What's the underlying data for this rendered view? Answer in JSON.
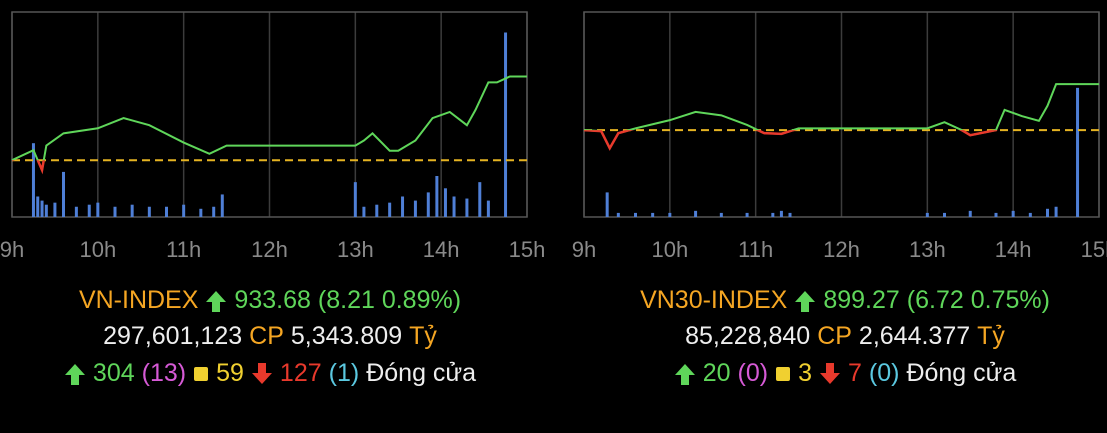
{
  "chart_data": [
    {
      "type": "line",
      "xlim": [
        9,
        15
      ],
      "ylim": [
        919.9,
        940
      ],
      "y2lim": [
        0,
        100
      ],
      "xticks": [
        {
          "value": 9,
          "label": "9h"
        },
        {
          "value": 10,
          "label": "10h"
        },
        {
          "value": 11,
          "label": "11h"
        },
        {
          "value": 12,
          "label": "12h"
        },
        {
          "value": 13,
          "label": "13h"
        },
        {
          "value": 14,
          "label": "14h"
        },
        {
          "value": 15,
          "label": "15h"
        }
      ],
      "x": [
        9.0,
        9.25,
        9.35,
        9.4,
        9.6,
        10.0,
        10.3,
        10.6,
        11.0,
        11.3,
        11.5,
        12.0,
        13.0,
        13.1,
        13.2,
        13.4,
        13.5,
        13.7,
        13.9,
        14.1,
        14.3,
        14.4,
        14.55,
        14.65,
        14.8,
        15.0
      ],
      "values": [
        925.47,
        926.45,
        924.5,
        926.9,
        928.1,
        928.6,
        929.6,
        928.9,
        927.2,
        926.1,
        926.9,
        926.9,
        926.9,
        927.4,
        928.1,
        926.4,
        926.4,
        927.4,
        929.6,
        930.2,
        928.9,
        930.4,
        933.1,
        933.1,
        933.68,
        933.68
      ],
      "color": "#5fd65a",
      "below_color": "#e8392c",
      "reference": 925.47,
      "reference_color": "#e6b422",
      "bar_x": [
        9.25,
        9.3,
        9.35,
        9.4,
        9.5,
        9.6,
        9.75,
        9.9,
        10.0,
        10.2,
        10.4,
        10.6,
        10.8,
        11.0,
        11.2,
        11.35,
        11.45,
        13.0,
        13.1,
        13.25,
        13.4,
        13.55,
        13.7,
        13.85,
        13.95,
        14.05,
        14.15,
        14.3,
        14.45,
        14.55,
        14.75
      ],
      "bar_values": [
        36,
        10,
        8,
        6,
        7,
        22,
        5,
        6,
        7,
        5,
        6,
        5,
        5,
        6,
        4,
        5,
        11,
        17,
        5,
        6,
        7,
        10,
        8,
        12,
        20,
        14,
        10,
        9,
        17,
        8,
        90
      ],
      "bar_color": "#4f7fd6",
      "summary": {
        "index_name": "VN-INDEX",
        "index_value": "933.68",
        "change_text": "(8.21 0.89%)",
        "volume": "297,601,123",
        "volume_unit": "CP",
        "turnover": "5,343.809",
        "turnover_unit": "Tỷ",
        "advances": 304,
        "ceiling": "(13)",
        "unchanged": 59,
        "declines": 127,
        "floor": "(1)",
        "status": "Đóng cửa"
      }
    },
    {
      "type": "line",
      "xlim": [
        9,
        15
      ],
      "ylim": [
        879.85,
        909.8
      ],
      "y2lim": [
        0,
        100
      ],
      "xticks": [
        {
          "value": 9,
          "label": "9h"
        },
        {
          "value": 10,
          "label": "10h"
        },
        {
          "value": 11,
          "label": "11h"
        },
        {
          "value": 12,
          "label": "12h"
        },
        {
          "value": 13,
          "label": "13h"
        },
        {
          "value": 14,
          "label": "14h"
        },
        {
          "value": 15,
          "label": "15h"
        }
      ],
      "x": [
        9.0,
        9.2,
        9.3,
        9.4,
        9.6,
        10.0,
        10.3,
        10.6,
        10.9,
        11.1,
        11.3,
        11.5,
        12.0,
        13.0,
        13.2,
        13.4,
        13.5,
        13.8,
        13.9,
        14.1,
        14.3,
        14.4,
        14.5,
        15.0
      ],
      "values": [
        892.55,
        892.4,
        889.9,
        892.1,
        892.8,
        894.0,
        895.2,
        894.7,
        893.3,
        892.1,
        892.0,
        892.8,
        892.8,
        892.8,
        893.7,
        892.55,
        891.8,
        892.55,
        895.5,
        894.6,
        893.9,
        896.1,
        899.27,
        899.27
      ],
      "color": "#5fd65a",
      "below_color": "#e8392c",
      "reference": 892.55,
      "reference_color": "#e6b422",
      "bar_x": [
        9.27,
        9.4,
        9.6,
        9.8,
        10.0,
        10.3,
        10.6,
        10.9,
        11.2,
        11.3,
        11.4,
        13.0,
        13.2,
        13.5,
        13.8,
        14.0,
        14.2,
        14.4,
        14.5,
        14.75
      ],
      "bar_values": [
        12,
        2,
        2,
        2,
        2,
        3,
        2,
        2,
        2,
        3,
        2,
        2,
        2,
        3,
        2,
        3,
        2,
        4,
        5,
        63
      ],
      "bar_color": "#4f7fd6",
      "summary": {
        "index_name": "VN30-INDEX",
        "index_value": "899.27",
        "change_text": "(6.72 0.75%)",
        "volume": "85,228,840",
        "volume_unit": "CP",
        "turnover": "2,644.377",
        "turnover_unit": "Tỷ",
        "advances": 20,
        "ceiling": "(0)",
        "unchanged": 3,
        "declines": 7,
        "floor": "(0)",
        "status": "Đóng cửa"
      }
    }
  ]
}
